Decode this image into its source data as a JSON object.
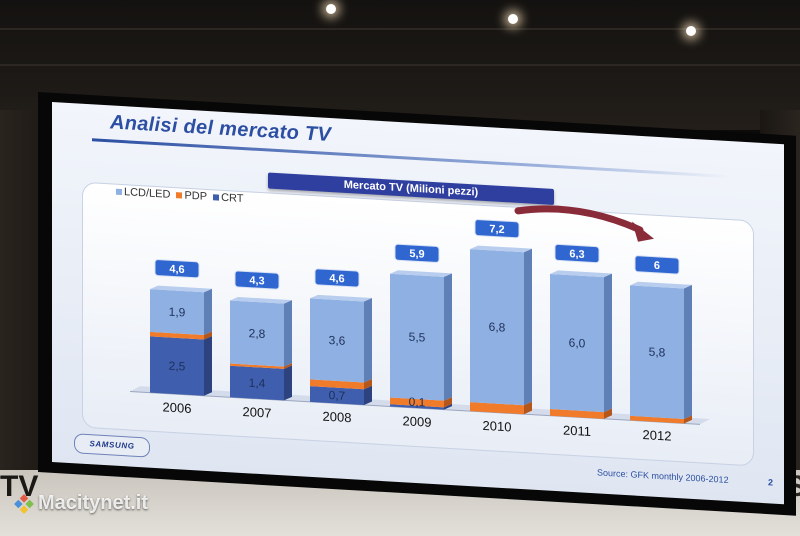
{
  "slide": {
    "title": "Analisi del mercato TV",
    "chart_title": "Mercato TV (Milioni pezzi)",
    "logo": "SAMSUNG",
    "source": "Source: GFK monthly 2006-2012",
    "page_number": "2"
  },
  "watermark": "Macitynet.it",
  "wall_letters": {
    "left": "TV",
    "right": "S"
  },
  "colors": {
    "lcd": "#8fb0e3",
    "pdp": "#f07b2a",
    "crt": "#3f5fae",
    "total_badge": "#2f66d0"
  },
  "chart_data": {
    "type": "bar",
    "stacked": true,
    "title": "Mercato TV (Milioni pezzi)",
    "categories": [
      "2006",
      "2007",
      "2008",
      "2009",
      "2010",
      "2011",
      "2012"
    ],
    "series": [
      {
        "name": "CRT",
        "values": [
          2.5,
          1.4,
          0.7,
          0.1,
          0,
          0,
          0
        ]
      },
      {
        "name": "PDP",
        "values": [
          0.2,
          0.1,
          0.3,
          0.3,
          0.4,
          0.3,
          0.2
        ]
      },
      {
        "name": "LCD/LED",
        "values": [
          1.9,
          2.8,
          3.6,
          5.5,
          6.8,
          6.0,
          5.8
        ]
      }
    ],
    "totals": [
      4.6,
      4.3,
      4.6,
      5.9,
      7.2,
      6.3,
      6.0
    ],
    "labels": {
      "CRT": [
        "2,5",
        "1,4",
        "0,7",
        "0,1",
        "",
        "",
        ""
      ],
      "LCD/LED": [
        "1,9",
        "2,8",
        "3,6",
        "5,5",
        "6,8",
        "6,0",
        "5,8"
      ],
      "totals": [
        "4,6",
        "4,3",
        "4,6",
        "5,9",
        "7,2",
        "6,3",
        "6"
      ]
    },
    "legend": [
      "LCD/LED",
      "PDP",
      "CRT"
    ],
    "legend_position": "top-left",
    "ylim": [
      0,
      8
    ]
  }
}
